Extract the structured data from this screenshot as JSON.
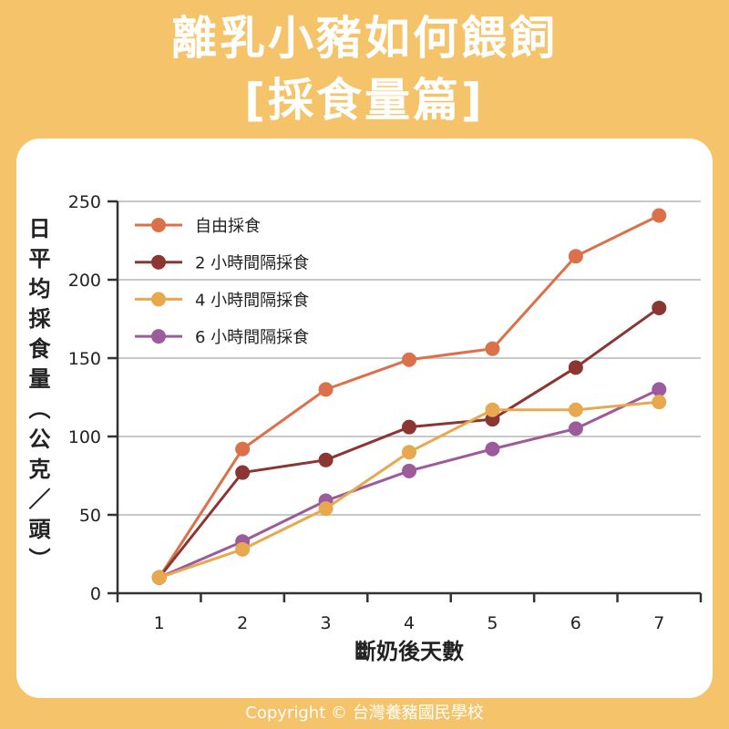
{
  "colors": {
    "background": "#F5C46A",
    "card": "#FFFFFF",
    "header_text": "#FFFFFF",
    "axis": "#333333",
    "grid": "#C8C8C8"
  },
  "header": {
    "title": "離乳小豬如何餵飼",
    "subtitle": "[採食量篇]"
  },
  "footer": {
    "copyright": "Copyright © 台灣養豬國民學校"
  },
  "chart_data": {
    "type": "line",
    "xlabel": "斷奶後天數",
    "ylabel": "日平均採食量（公克／頭）",
    "x": [
      1,
      2,
      3,
      4,
      5,
      6,
      7
    ],
    "xlim": [
      0.5,
      7.5
    ],
    "ylim": [
      0,
      250
    ],
    "yticks": [
      0,
      50,
      100,
      150,
      200,
      250
    ],
    "grid": true,
    "legend": "top-left",
    "series": [
      {
        "name": "自由採食",
        "color": "#DB714B",
        "values": [
          10,
          92,
          130,
          149,
          156,
          215,
          241
        ]
      },
      {
        "name": "2 小時間隔採食",
        "color": "#8B3633",
        "values": [
          10,
          77,
          85,
          106,
          111,
          144,
          182
        ]
      },
      {
        "name": "4 小時間隔採食",
        "color": "#E8A84E",
        "values": [
          10,
          28,
          54,
          90,
          117,
          117,
          122
        ]
      },
      {
        "name": "6 小時間隔採食",
        "color": "#9C5B9A",
        "values": [
          10,
          33,
          59,
          78,
          92,
          105,
          130
        ]
      }
    ]
  }
}
